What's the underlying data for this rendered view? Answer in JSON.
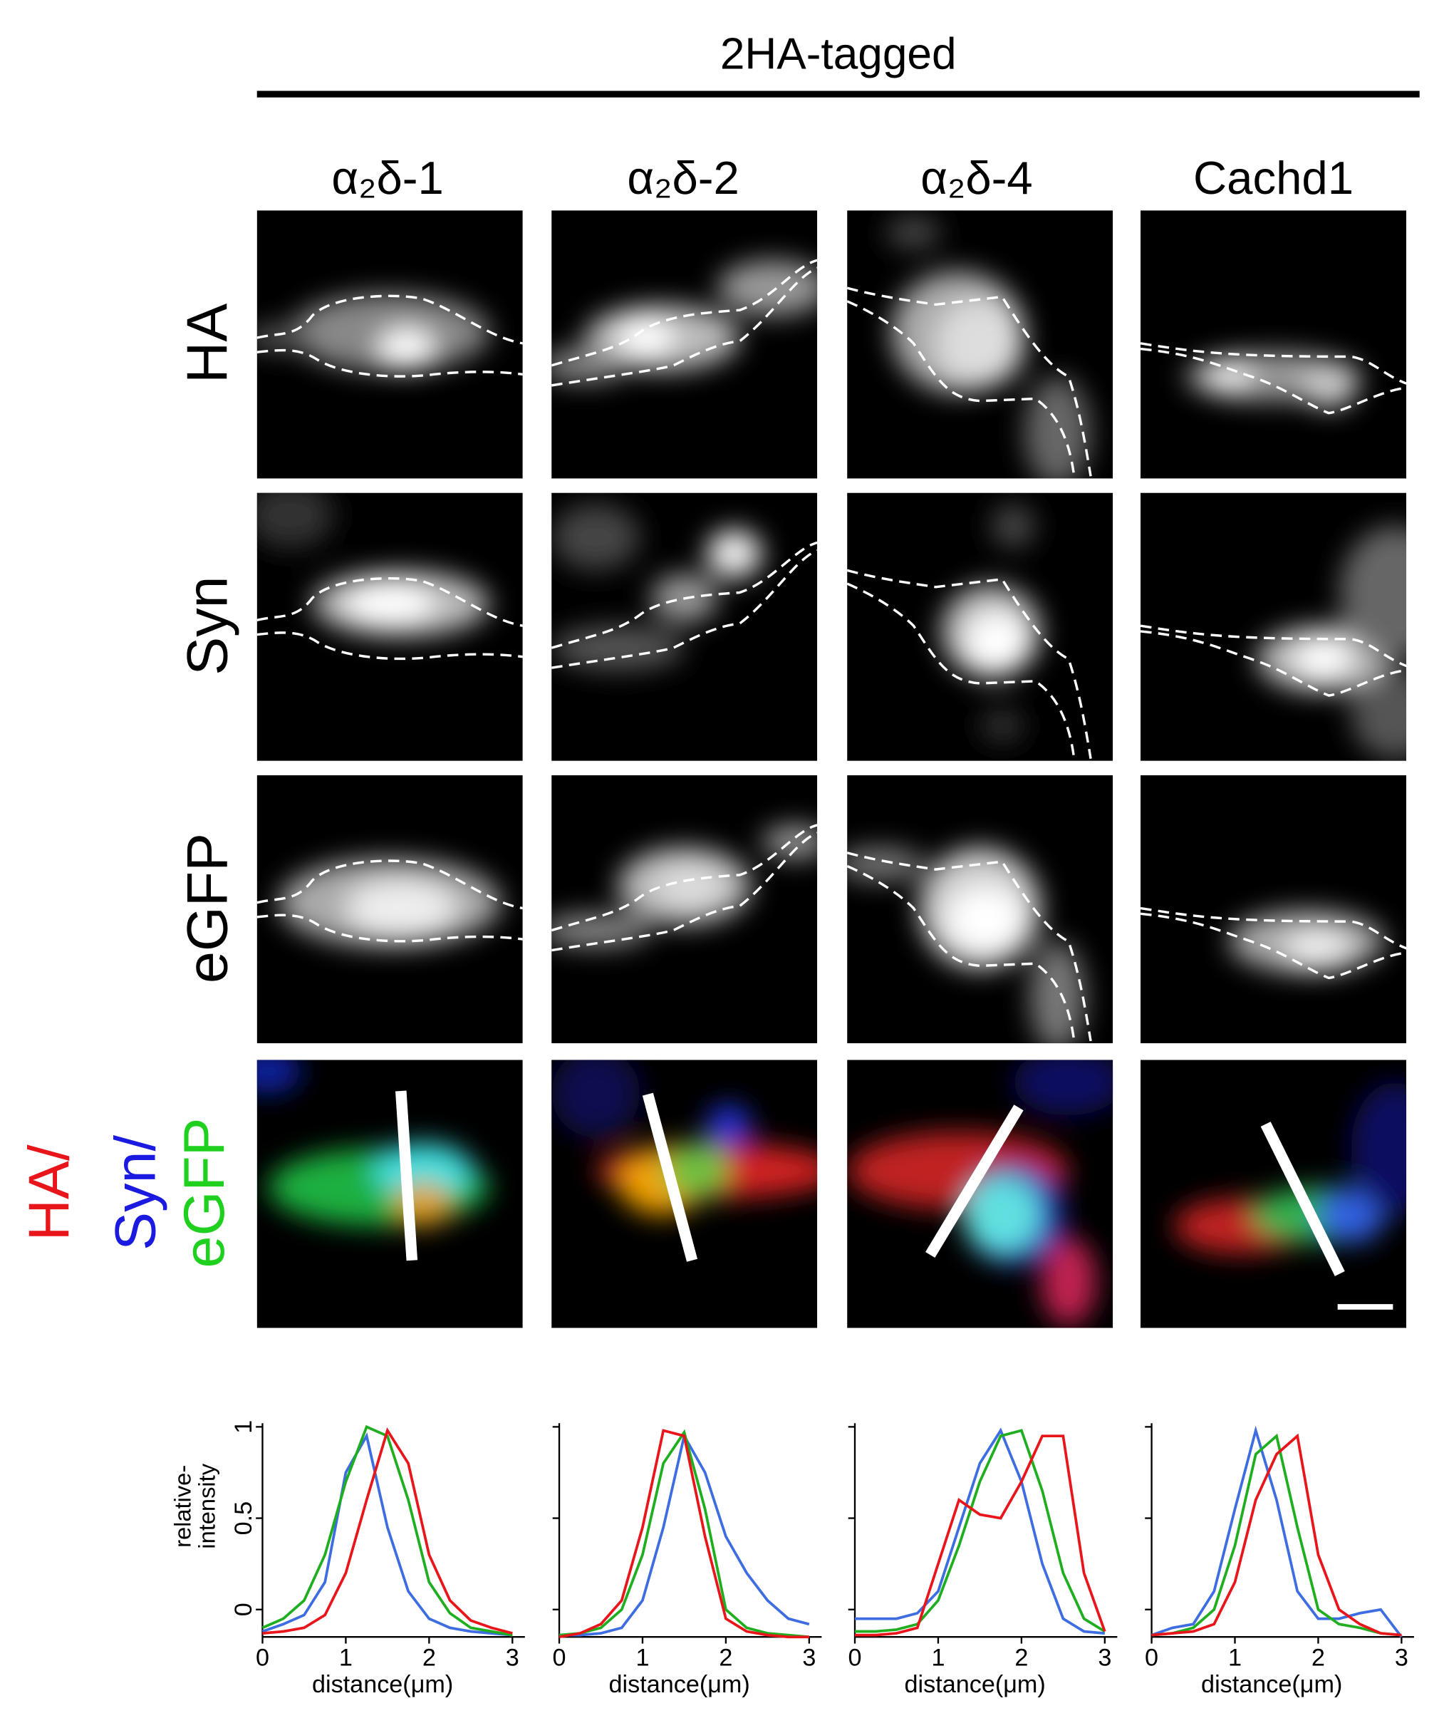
{
  "figure": {
    "title": "2HA-tagged",
    "columns": [
      "α₂δ-1",
      "α₂δ-2",
      "α₂δ-4",
      "Cachd1"
    ],
    "rows": [
      "HA",
      "Syn",
      "eGFP"
    ],
    "merge_label": [
      "HA/",
      "Syn/",
      "eGFP"
    ]
  },
  "chart_data": [
    {
      "type": "line",
      "x": [
        0,
        0.25,
        0.5,
        0.75,
        1,
        1.25,
        1.5,
        1.75,
        2,
        2.25,
        2.5,
        2.75,
        3
      ],
      "xlim": [
        0,
        3.15
      ],
      "xticks": [
        0,
        1,
        2,
        3
      ],
      "ylim": [
        -0.15,
        1.02
      ],
      "yticks": [
        0,
        0.5,
        1
      ],
      "ytick_labels": true,
      "xlabel": "distance(μm)",
      "ylabel": [
        "relative-",
        "intensity"
      ],
      "series": [
        {
          "color": "#3d6de0",
          "values": [
            -0.12,
            -0.08,
            -0.03,
            0.15,
            0.75,
            0.95,
            0.45,
            0.1,
            -0.05,
            -0.1,
            -0.12,
            -0.13,
            -0.14
          ]
        },
        {
          "color": "#1fae1f",
          "values": [
            -0.1,
            -0.05,
            0.05,
            0.3,
            0.7,
            1.0,
            0.95,
            0.6,
            0.15,
            -0.02,
            -0.1,
            -0.12,
            -0.14
          ]
        },
        {
          "color": "#e8151b",
          "values": [
            -0.13,
            -0.12,
            -0.1,
            -0.03,
            0.2,
            0.6,
            0.98,
            0.8,
            0.3,
            0.05,
            -0.06,
            -0.1,
            -0.13
          ]
        }
      ]
    },
    {
      "type": "line",
      "x": [
        0,
        0.25,
        0.5,
        0.75,
        1,
        1.25,
        1.5,
        1.75,
        2,
        2.25,
        2.5,
        2.75,
        3
      ],
      "xlim": [
        0,
        3.15
      ],
      "xticks": [
        0,
        1,
        2,
        3
      ],
      "ylim": [
        -0.15,
        1.02
      ],
      "yticks": [
        0,
        0.5,
        1
      ],
      "ytick_labels": false,
      "xlabel": "distance(μm)",
      "series": [
        {
          "color": "#3d6de0",
          "values": [
            -0.14,
            -0.14,
            -0.13,
            -0.1,
            0.05,
            0.45,
            0.95,
            0.75,
            0.4,
            0.2,
            0.05,
            -0.05,
            -0.08
          ]
        },
        {
          "color": "#1fae1f",
          "values": [
            -0.14,
            -0.13,
            -0.1,
            0,
            0.3,
            0.8,
            0.97,
            0.55,
            0,
            -0.1,
            -0.13,
            -0.14,
            -0.15
          ]
        },
        {
          "color": "#e8151b",
          "values": [
            -0.15,
            -0.13,
            -0.08,
            0.05,
            0.45,
            0.98,
            0.95,
            0.4,
            -0.05,
            -0.12,
            -0.14,
            -0.15,
            -0.15
          ]
        }
      ]
    },
    {
      "type": "line",
      "x": [
        0,
        0.25,
        0.5,
        0.75,
        1,
        1.25,
        1.5,
        1.75,
        2,
        2.25,
        2.5,
        2.75,
        3
      ],
      "xlim": [
        0,
        3.15
      ],
      "xticks": [
        0,
        1,
        2,
        3
      ],
      "ylim": [
        -0.15,
        1.02
      ],
      "yticks": [
        0,
        0.5,
        1
      ],
      "ytick_labels": false,
      "xlabel": "distance(μm)",
      "series": [
        {
          "color": "#3d6de0",
          "values": [
            -0.05,
            -0.05,
            -0.05,
            -0.02,
            0.1,
            0.45,
            0.8,
            0.98,
            0.7,
            0.25,
            -0.05,
            -0.12,
            -0.13
          ]
        },
        {
          "color": "#1fae1f",
          "values": [
            -0.12,
            -0.12,
            -0.11,
            -0.08,
            0.05,
            0.35,
            0.7,
            0.95,
            0.98,
            0.65,
            0.2,
            -0.05,
            -0.12
          ]
        },
        {
          "color": "#e8151b",
          "values": [
            -0.14,
            -0.14,
            -0.13,
            -0.1,
            0.25,
            0.6,
            0.52,
            0.5,
            0.7,
            0.95,
            0.95,
            0.2,
            -0.12
          ]
        }
      ]
    },
    {
      "type": "line",
      "x": [
        0,
        0.25,
        0.5,
        0.75,
        1,
        1.25,
        1.5,
        1.75,
        2,
        2.25,
        2.5,
        2.75,
        3
      ],
      "xlim": [
        0,
        3.15
      ],
      "xticks": [
        0,
        1,
        2,
        3
      ],
      "ylim": [
        -0.15,
        1.02
      ],
      "yticks": [
        0,
        0.5,
        1
      ],
      "ytick_labels": false,
      "xlabel": "distance(μm)",
      "series": [
        {
          "color": "#3d6de0",
          "values": [
            -0.14,
            -0.1,
            -0.08,
            0.1,
            0.55,
            0.98,
            0.6,
            0.1,
            -0.05,
            -0.05,
            -0.02,
            0,
            -0.15
          ]
        },
        {
          "color": "#1fae1f",
          "values": [
            -0.14,
            -0.13,
            -0.1,
            0,
            0.35,
            0.85,
            0.95,
            0.45,
            0,
            -0.08,
            -0.1,
            -0.13,
            -0.14
          ]
        },
        {
          "color": "#e8151b",
          "values": [
            -0.14,
            -0.13,
            -0.12,
            -0.08,
            0.15,
            0.6,
            0.85,
            0.95,
            0.3,
            0,
            -0.08,
            -0.13,
            -0.14
          ]
        }
      ]
    }
  ]
}
